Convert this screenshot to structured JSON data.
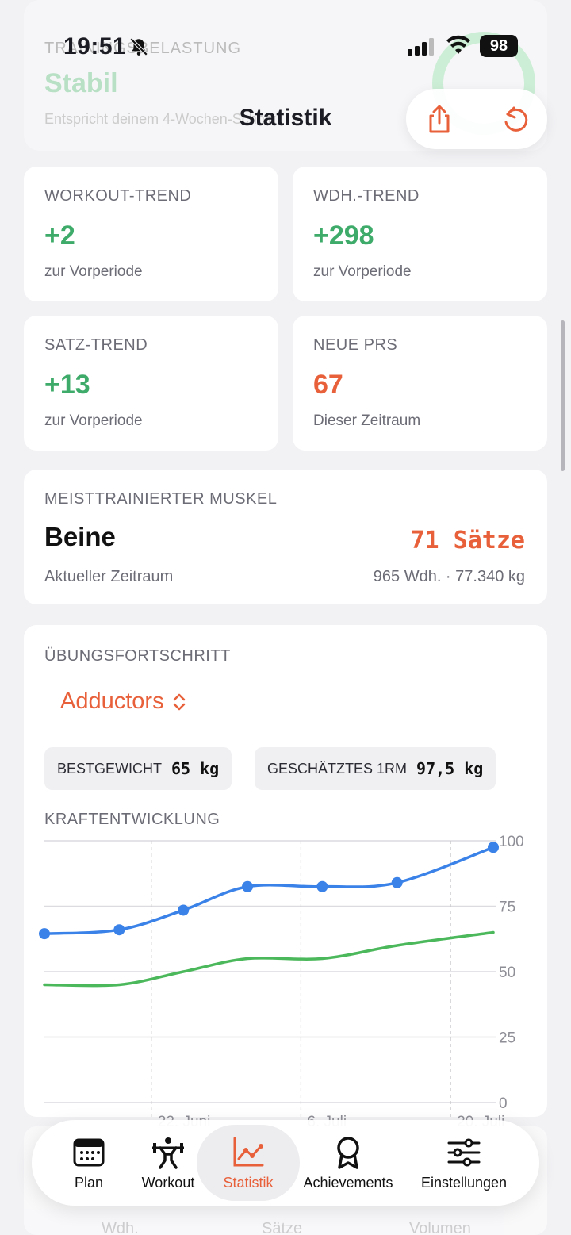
{
  "status_bar": {
    "time": "19:51",
    "battery": "98"
  },
  "ghost": {
    "label": "TRAININGSBELASTUNG",
    "value": "Stabil",
    "sub": "Entspricht deinem 4-Wochen-Schnitt"
  },
  "header": {
    "title": "Statistik"
  },
  "trend_cards": [
    {
      "label": "WORKOUT-TREND",
      "value": "+2",
      "sub": "zur Vorperiode"
    },
    {
      "label": "WDH.-TREND",
      "value": "+298",
      "sub": "zur Vorperiode"
    },
    {
      "label": "SATZ-TREND",
      "value": "+13",
      "sub": "zur Vorperiode"
    },
    {
      "label": "NEUE PRS",
      "value": "67",
      "sub": "Dieser Zeitraum"
    }
  ],
  "muscle": {
    "label": "MEISTTRAINIERTER MUSKEL",
    "name": "Beine",
    "sets": "71 Sätze",
    "sub": "Aktueller Zeitraum",
    "meta": "965 Wdh. · 77.340 kg"
  },
  "progress": {
    "label": "ÜBUNGSFORTSCHRITT",
    "exercise": "Adductors",
    "best_label": "BESTGEWICHT",
    "best_value": "65 kg",
    "orm_label": "GESCHÄTZTES 1RM",
    "orm_value": "97,5 kg",
    "chart_title": "KRAFTENTWICKLUNG"
  },
  "chart_data": {
    "type": "line",
    "x": [
      "2025-06-12",
      "2025-06-19",
      "2025-06-25",
      "2025-07-01",
      "2025-07-08",
      "2025-07-15",
      "2025-07-24"
    ],
    "xticks": [
      "22. Juni",
      "6. Juli",
      "20. Juli"
    ],
    "ylim": [
      0,
      100
    ],
    "yticks": [
      0,
      25,
      50,
      75,
      100
    ],
    "series": [
      {
        "values": [
          64.5,
          66,
          73.5,
          82.5,
          82.5,
          84,
          97.5
        ],
        "color": "#3b82e8",
        "markers": true
      },
      {
        "values": [
          45,
          45,
          50,
          55,
          55,
          60,
          65
        ],
        "color": "#4cb85c",
        "markers": false
      }
    ],
    "grid": true
  },
  "bottom_labels": [
    "Wdh.",
    "Sätze",
    "Volumen"
  ],
  "tabs": [
    {
      "label": "Plan",
      "icon": "calendar-icon"
    },
    {
      "label": "Workout",
      "icon": "weightlifter-icon"
    },
    {
      "label": "Statistik",
      "icon": "chart-icon",
      "active": true
    },
    {
      "label": "Achievements",
      "icon": "award-icon"
    },
    {
      "label": "Einstellungen",
      "icon": "sliders-icon"
    }
  ],
  "colors": {
    "accent": "#e8603a",
    "positive": "#3fab6a",
    "series_blue": "#3b82e8",
    "series_green": "#4cb85c"
  }
}
